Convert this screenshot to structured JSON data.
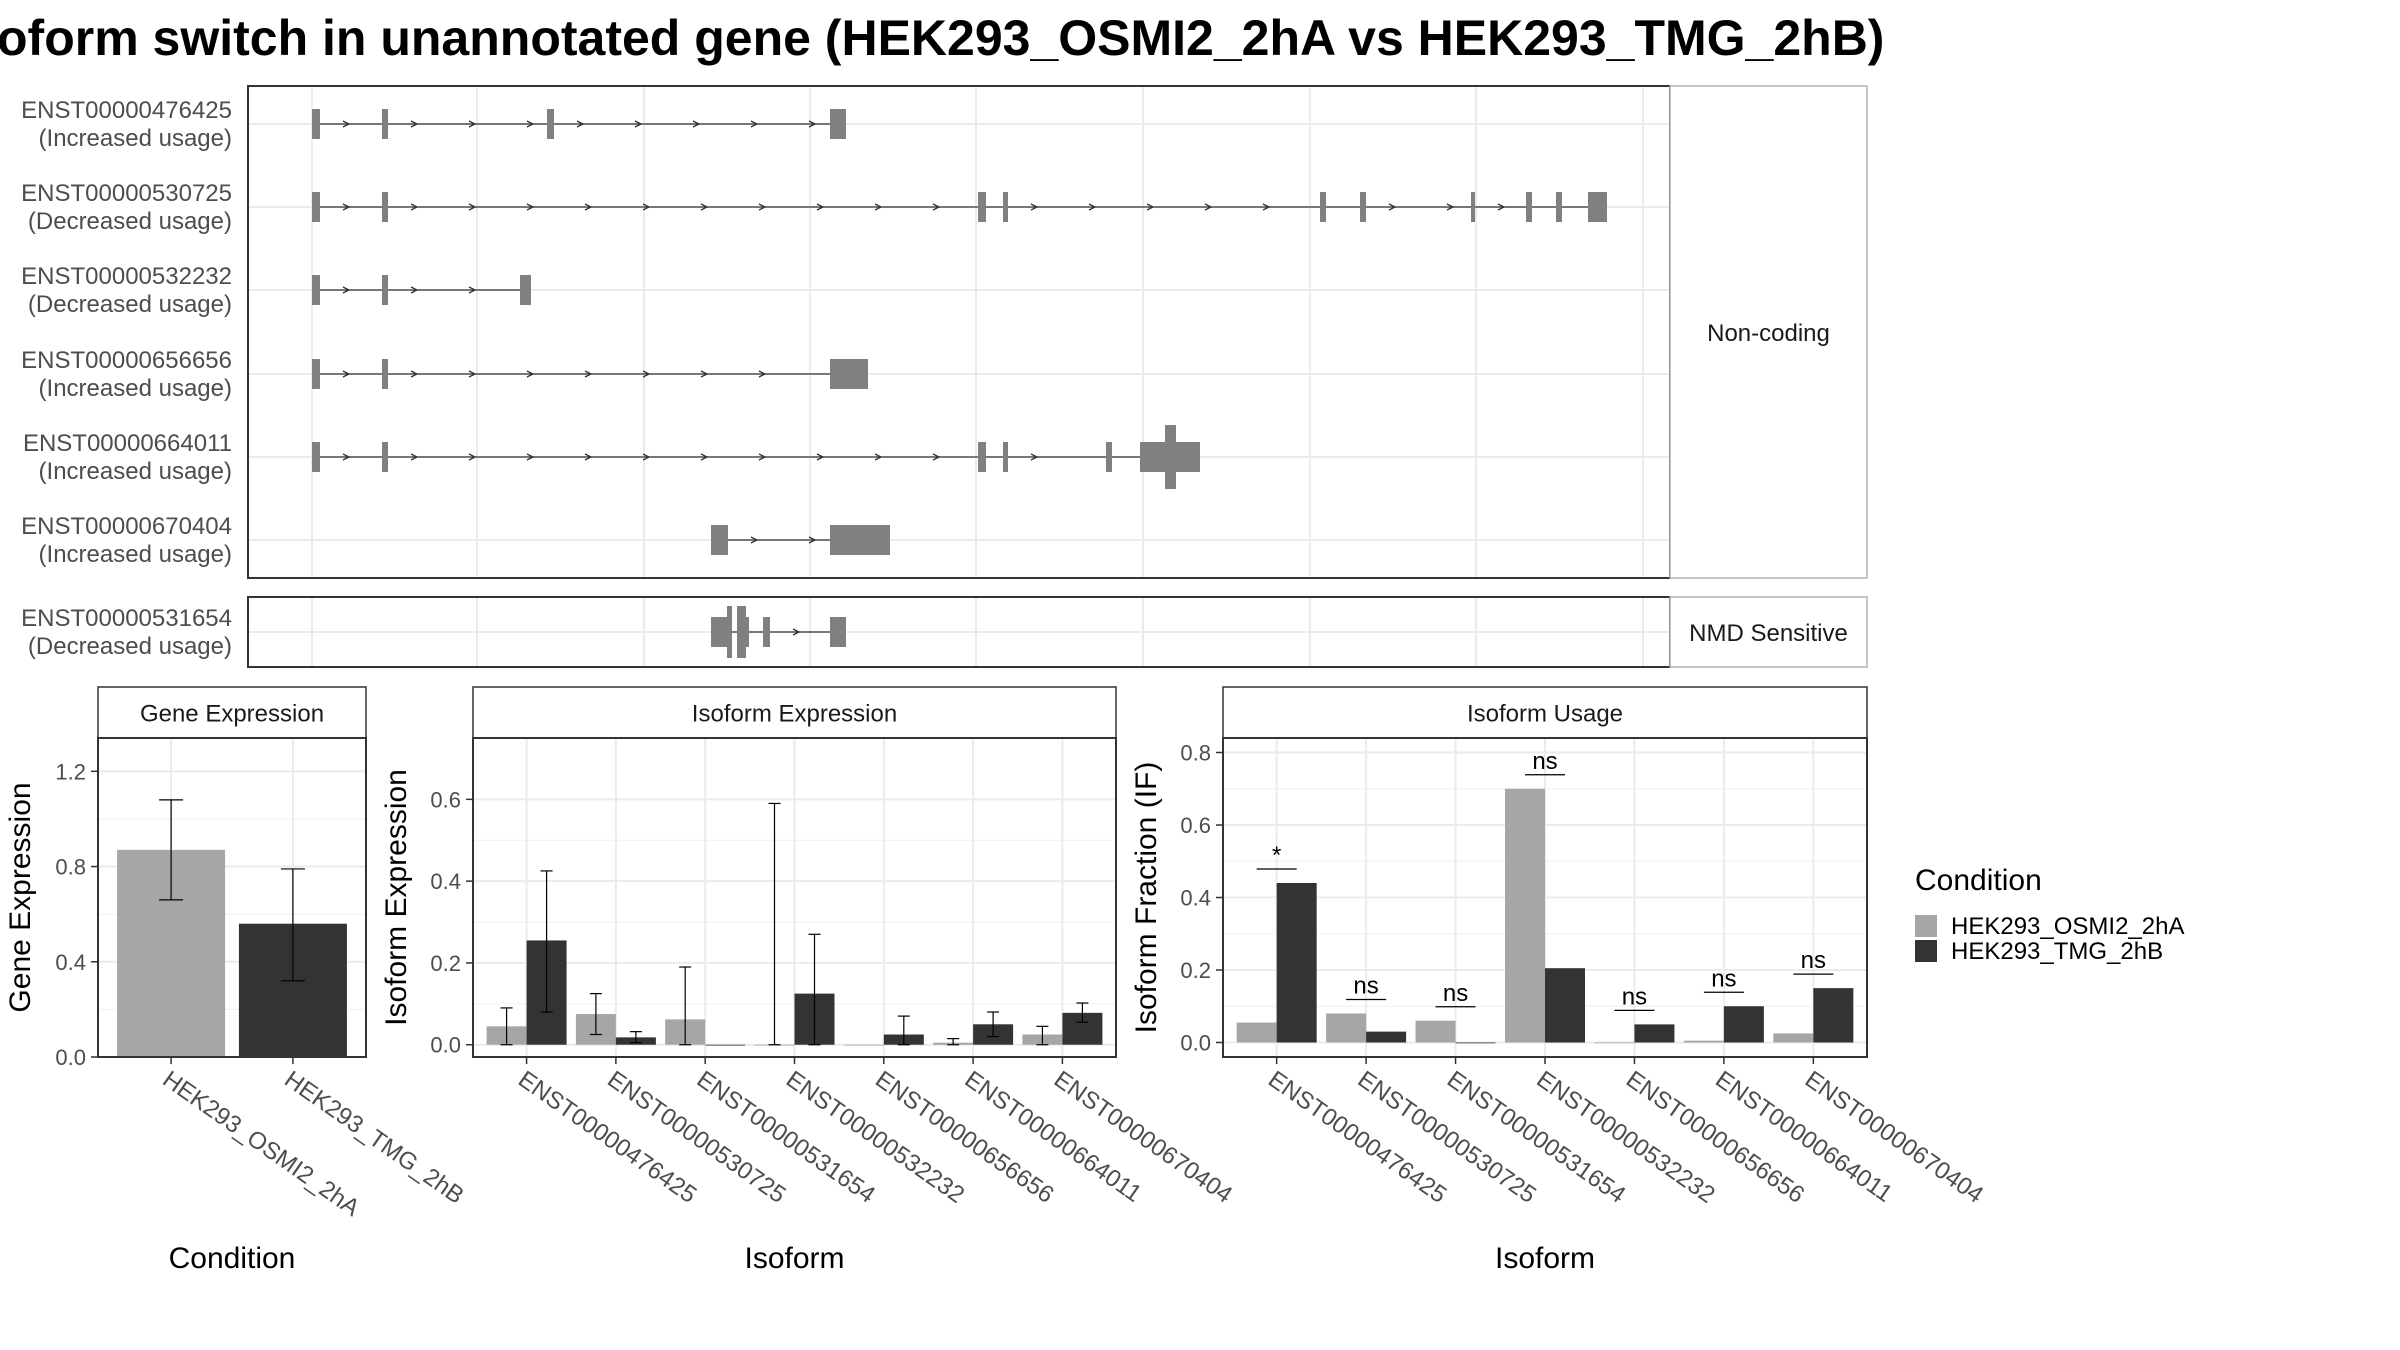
{
  "title": "oform switch in unannotated gene (HEK293_OSMI2_2hA vs HEK293_TMG_2hB)",
  "colors": {
    "exon": "#808080",
    "condA": "#a6a6a6",
    "condB": "#333333",
    "grid": "#ebebeb",
    "strip_bg": "#ffffff",
    "panel_border": "#333333",
    "strip_border": "#b3b3b3",
    "text": "#4d4d4d"
  },
  "structure": {
    "groups": [
      {
        "label": "Non-coding",
        "transcripts": [
          {
            "id": "ENST00000476425",
            "usage": "(Increased usage)"
          },
          {
            "id": "ENST00000530725",
            "usage": "(Decreased usage)"
          },
          {
            "id": "ENST00000532232",
            "usage": "(Decreased usage)"
          },
          {
            "id": "ENST00000656656",
            "usage": "(Increased usage)"
          },
          {
            "id": "ENST00000664011",
            "usage": "(Increased usage)"
          },
          {
            "id": "ENST00000670404",
            "usage": "(Increased usage)"
          }
        ]
      },
      {
        "label": "NMD Sensitive",
        "transcripts": [
          {
            "id": "ENST00000531654",
            "usage": "(Decreased usage)"
          }
        ]
      }
    ]
  },
  "legend": {
    "title": "Condition",
    "items": [
      "HEK293_OSMI2_2hA",
      "HEK293_TMG_2hB"
    ]
  },
  "chart_data": [
    {
      "type": "bar",
      "strip": "Gene Expression",
      "xlabel": "Condition",
      "ylabel": "Gene Expression",
      "ylim": [
        0,
        1.34
      ],
      "yticks": [
        0.0,
        0.4,
        0.8,
        1.2
      ],
      "ytick_labels": [
        "0.0",
        "0.4",
        "0.8",
        "1.2"
      ],
      "categories": [
        "HEK293_OSMI2_2hA",
        "HEK293_TMG_2hB"
      ],
      "series": [
        {
          "name": "HEK293_OSMI2_2hA",
          "values": [
            0.87,
            null
          ],
          "err_low": [
            0.66,
            null
          ],
          "err_high": [
            1.08,
            null
          ]
        },
        {
          "name": "HEK293_TMG_2hB",
          "values": [
            null,
            0.56
          ],
          "err_low": [
            null,
            0.32
          ],
          "err_high": [
            null,
            0.79
          ]
        }
      ]
    },
    {
      "type": "bar",
      "strip": "Isoform Expression",
      "xlabel": "Isoform",
      "ylabel": "Isoform Expression",
      "ylim": [
        -0.03,
        0.75
      ],
      "yticks": [
        0.0,
        0.2,
        0.4,
        0.6
      ],
      "ytick_labels": [
        "0.0",
        "0.2",
        "0.4",
        "0.6"
      ],
      "categories": [
        "ENST00000476425",
        "ENST00000530725",
        "ENST00000531654",
        "ENST00000532232",
        "ENST00000656656",
        "ENST00000664011",
        "ENST00000670404"
      ],
      "series": [
        {
          "name": "HEK293_OSMI2_2hA",
          "values": [
            0.045,
            0.075,
            0.062,
            0.0,
            0.0,
            0.005,
            0.025
          ],
          "err_low": [
            0.0,
            0.025,
            0.0,
            0.0,
            0.0,
            0.0,
            0.0
          ],
          "err_high": [
            0.09,
            0.125,
            0.19,
            0.59,
            0.0,
            0.015,
            0.045
          ]
        },
        {
          "name": "HEK293_TMG_2hB",
          "values": [
            0.255,
            0.018,
            0.0,
            0.125,
            0.025,
            0.05,
            0.078
          ],
          "err_low": [
            0.08,
            0.005,
            0.0,
            0.0,
            0.0,
            0.02,
            0.055
          ],
          "err_high": [
            0.425,
            0.032,
            0.0,
            0.27,
            0.07,
            0.08,
            0.102
          ]
        }
      ]
    },
    {
      "type": "bar",
      "strip": "Isoform Usage",
      "xlabel": "Isoform",
      "ylabel": "Isoform Fraction (IF)",
      "ylim": [
        -0.04,
        0.84
      ],
      "yticks": [
        0.0,
        0.2,
        0.4,
        0.6,
        0.8
      ],
      "ytick_labels": [
        "0.0",
        "0.2",
        "0.4",
        "0.6",
        "0.8"
      ],
      "categories": [
        "ENST00000476425",
        "ENST00000530725",
        "ENST00000531654",
        "ENST00000532232",
        "ENST00000656656",
        "ENST00000664011",
        "ENST00000670404"
      ],
      "series": [
        {
          "name": "HEK293_OSMI2_2hA",
          "values": [
            0.055,
            0.08,
            0.06,
            0.7,
            0.0,
            0.005,
            0.025
          ]
        },
        {
          "name": "HEK293_TMG_2hB",
          "values": [
            0.44,
            0.03,
            0.0,
            0.205,
            0.05,
            0.1,
            0.15
          ]
        }
      ],
      "annotations": [
        "*",
        "ns",
        "ns",
        "ns",
        "ns",
        "ns",
        "ns"
      ]
    }
  ]
}
